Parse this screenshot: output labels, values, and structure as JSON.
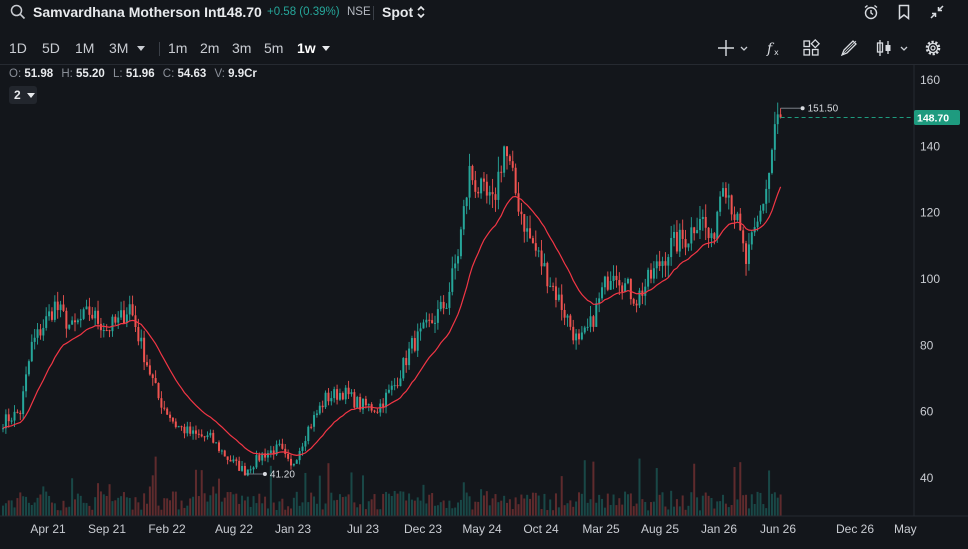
{
  "header": {
    "symbol_name": "Samvardhana Motherson Int",
    "price": "148.70",
    "change": "+0.58 (0.39%)",
    "exchange": "NSE",
    "market": "Spot"
  },
  "toolbar": {
    "ranges": [
      "1D",
      "5D",
      "1M",
      "3M"
    ],
    "intervals": [
      "1m",
      "2m",
      "3m",
      "5m",
      "1w"
    ],
    "active_interval": "1w"
  },
  "ohlc": {
    "o_label": "O:",
    "o": "51.98",
    "h_label": "H:",
    "h": "55.20",
    "l_label": "L:",
    "l": "51.96",
    "c_label": "C:",
    "c": "54.63",
    "v_label": "V:",
    "v": "9.9Cr"
  },
  "indicator_chip": "2",
  "colors": {
    "up": "#26a69a",
    "down": "#ef5350",
    "ma": "#f23645",
    "price_tag": "#1e9b7f"
  },
  "chart_data": {
    "type": "candlestick",
    "y_ticks": [
      "160",
      "140",
      "120",
      "100",
      "80",
      "60",
      "40"
    ],
    "ylim": [
      30,
      164
    ],
    "x_ticks": [
      "Apr 21",
      "Sep 21",
      "Feb 22",
      "Aug 22",
      "Jan 23",
      "Jul 23",
      "Dec 23",
      "May 24",
      "Oct 24",
      "Mar 25",
      "Aug 25",
      "Jan 26",
      "Jun 26",
      "Dec 26",
      "May"
    ],
    "last_price": "148.70",
    "high_marker": "151.50",
    "low_marker": "41.20",
    "anchors": [
      [
        0,
        57
      ],
      [
        6,
        60
      ],
      [
        10,
        80
      ],
      [
        18,
        92
      ],
      [
        24,
        85
      ],
      [
        30,
        90
      ],
      [
        36,
        85
      ],
      [
        40,
        87
      ],
      [
        44,
        92
      ],
      [
        48,
        80
      ],
      [
        54,
        64
      ],
      [
        60,
        56
      ],
      [
        66,
        53
      ],
      [
        72,
        52
      ],
      [
        78,
        46
      ],
      [
        84,
        42
      ],
      [
        90,
        47
      ],
      [
        96,
        49
      ],
      [
        100,
        43
      ],
      [
        106,
        55
      ],
      [
        112,
        64
      ],
      [
        118,
        66
      ],
      [
        124,
        62
      ],
      [
        130,
        61
      ],
      [
        136,
        68
      ],
      [
        142,
        80
      ],
      [
        148,
        86
      ],
      [
        154,
        93
      ],
      [
        158,
        108
      ],
      [
        162,
        132
      ],
      [
        166,
        126
      ],
      [
        170,
        122
      ],
      [
        174,
        140
      ],
      [
        178,
        126
      ],
      [
        182,
        114
      ],
      [
        188,
        103
      ],
      [
        194,
        92
      ],
      [
        200,
        80
      ],
      [
        204,
        86
      ],
      [
        208,
        96
      ],
      [
        212,
        104
      ],
      [
        216,
        98
      ],
      [
        220,
        94
      ],
      [
        226,
        102
      ],
      [
        232,
        110
      ],
      [
        238,
        113
      ],
      [
        242,
        120
      ],
      [
        246,
        110
      ],
      [
        250,
        132
      ],
      [
        254,
        120
      ],
      [
        258,
        105
      ],
      [
        262,
        116
      ],
      [
        266,
        132
      ],
      [
        268,
        146
      ],
      [
        270,
        148.7
      ]
    ],
    "volume_range": [
      0,
      55
    ]
  }
}
